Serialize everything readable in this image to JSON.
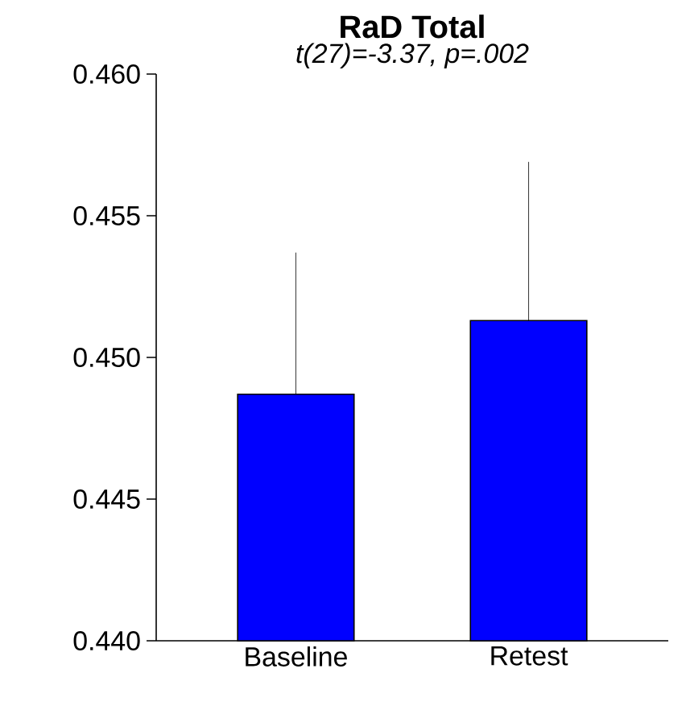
{
  "chart_data": {
    "type": "bar",
    "title": "RaD Total",
    "subtitle": "t(27)=-3.37, p=.002",
    "categories": [
      "Baseline",
      "Retest"
    ],
    "values": [
      0.4487,
      0.4513
    ],
    "color": "#0000ff",
    "errors": [
      [
        0.4487,
        0.4537
      ],
      [
        0.4513,
        0.4569
      ]
    ],
    "ylim": [
      0.44,
      0.46
    ],
    "yticks": [
      {
        "value": 0.44,
        "label": "0.440"
      },
      {
        "value": 0.445,
        "label": "0.445"
      },
      {
        "value": 0.45,
        "label": "0.450"
      },
      {
        "value": 0.455,
        "label": "0.455"
      },
      {
        "value": 0.46,
        "label": "0.460"
      }
    ],
    "grid": false
  }
}
